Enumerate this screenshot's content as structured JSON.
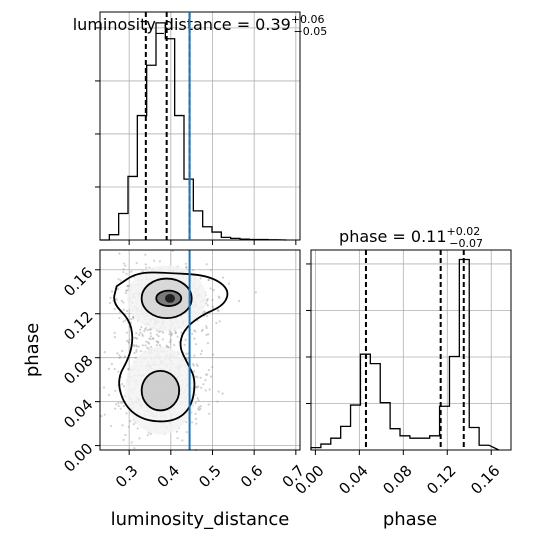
{
  "chart_data": {
    "type": "corner",
    "parameters": [
      "luminosity_distance",
      "phase"
    ],
    "truth": {
      "luminosity_distance": 0.445,
      "phase": null
    },
    "colors": {
      "truth_line": "#1f77b4",
      "hist_line": "#000000",
      "grid": "#b0b0b0"
    },
    "grid": true,
    "panels": [
      {
        "id": "hist_luminosity_distance",
        "type": "histogram",
        "title": {
          "prefix": "luminosity_distance = 0.39",
          "sup": "+0.06",
          "sub": "−0.05"
        },
        "xlim": [
          0.23,
          0.71
        ],
        "quantiles": [
          0.34,
          0.39,
          0.445
        ],
        "bins": {
          "edges": [
            0.23,
            0.2524,
            0.2748,
            0.2972,
            0.3196,
            0.342,
            0.3644,
            0.3868,
            0.4092,
            0.4316,
            0.454,
            0.4764,
            0.4988,
            0.5212,
            0.5436,
            0.566,
            0.5884,
            0.6108,
            0.6332,
            0.6556
          ],
          "counts": [
            0,
            2,
            10,
            24,
            47,
            66,
            82,
            76,
            47,
            23,
            11,
            5,
            3,
            1,
            0.6,
            0.3,
            0.2,
            0.2,
            0.1
          ]
        },
        "xticks": [
          0.3,
          0.4,
          0.5,
          0.6,
          0.7
        ],
        "ytick_count": 4,
        "y_labels_shown": false
      },
      {
        "id": "hist_phase",
        "type": "histogram",
        "title": {
          "prefix": "phase = 0.11",
          "sup": "+0.02",
          "sub": "−0.07"
        },
        "xlim": [
          -0.004,
          0.178
        ],
        "quantiles": [
          0.046,
          0.114,
          0.135
        ],
        "bins": {
          "edges": [
            -0.004,
            0.005,
            0.014,
            0.023,
            0.032,
            0.041,
            0.05,
            0.059,
            0.068,
            0.077,
            0.086,
            0.095,
            0.104,
            0.113,
            0.122,
            0.131,
            0.14,
            0.149,
            0.158
          ],
          "counts": [
            2,
            5,
            10,
            20,
            38,
            81,
            73,
            40,
            18,
            12,
            10,
            10,
            12,
            37,
            79,
            161,
            19,
            4
          ]
        },
        "xticks": [
          0.0,
          0.04,
          0.08,
          0.12,
          0.16
        ],
        "xtick_labels": [
          "0.00",
          "0.04",
          "0.08",
          "0.12",
          "0.16"
        ],
        "ytick_count": 4,
        "y_labels_shown": false
      },
      {
        "id": "scatter_luminosity_distance_phase",
        "type": "2d_density",
        "xlim": [
          0.23,
          0.71
        ],
        "ylim": [
          -0.004,
          0.178
        ],
        "xticks": [
          0.3,
          0.4,
          0.5,
          0.6,
          0.7
        ],
        "xtick_labels": [
          "0.3",
          "0.4",
          "0.5",
          "0.6",
          "0.7"
        ],
        "yticks": [
          0.0,
          0.04,
          0.08,
          0.12,
          0.16
        ],
        "ytick_labels": [
          "0.00",
          "0.04",
          "0.08",
          "0.12",
          "0.16"
        ],
        "clusters": [
          {
            "cx": 0.39,
            "cy": 0.134,
            "sx": 0.055,
            "sy": 0.014,
            "n": 700
          },
          {
            "cx": 0.375,
            "cy": 0.05,
            "sx": 0.055,
            "sy": 0.02,
            "n": 450
          },
          {
            "cx": 0.37,
            "cy": 0.09,
            "sx": 0.045,
            "sy": 0.025,
            "n": 220
          }
        ]
      }
    ],
    "xlabels": [
      "luminosity_distance",
      "phase"
    ],
    "ylabels": [
      "",
      "phase"
    ]
  }
}
